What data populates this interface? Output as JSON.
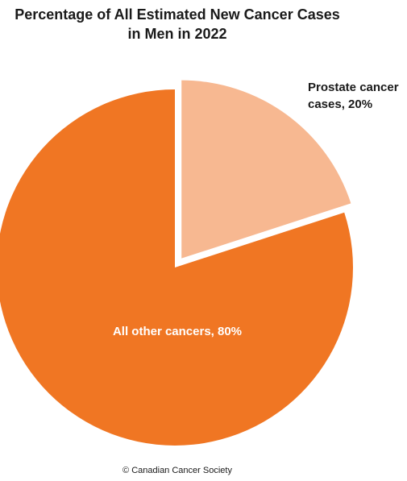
{
  "chart_data": {
    "type": "pie",
    "title_line1": "Percentage of All Estimated New Cancer Cases",
    "title_line2": "in Men in 2022",
    "slices": [
      {
        "label": "Prostate cancer cases, 20%",
        "label_line1": "Prostate cancer",
        "label_line2": "cases, 20%",
        "value": 20,
        "color": "#f7b891",
        "exploded": true
      },
      {
        "label": "All other cancers, 80%",
        "value": 80,
        "color": "#f07623",
        "exploded": false
      }
    ]
  },
  "footer": {
    "copyright": "© Canadian Cancer Society"
  }
}
